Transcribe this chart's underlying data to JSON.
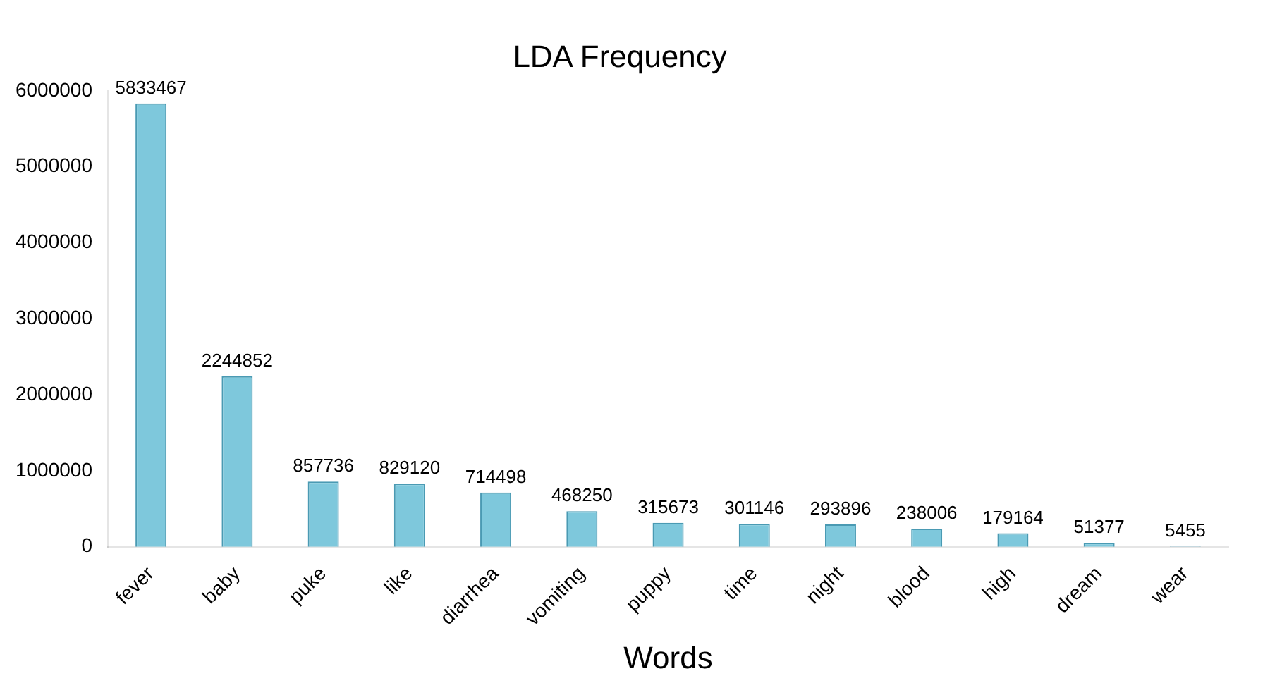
{
  "chart_data": {
    "type": "bar",
    "title": "LDA Frequency",
    "xlabel": "Words",
    "categories": [
      "fever",
      "baby",
      "puke",
      "like",
      "diarrhea",
      "vomiting",
      "puppy",
      "time",
      "night",
      "blood",
      "high",
      "dream",
      "wear"
    ],
    "values": [
      5833467,
      2244852,
      857736,
      829120,
      714498,
      468250,
      315673,
      301146,
      293896,
      238006,
      179164,
      51377,
      5455
    ],
    "color": "#7ec8dc",
    "ylim": [
      0,
      6000000
    ],
    "yticks": [
      0,
      1000000,
      2000000,
      3000000,
      4000000,
      5000000,
      6000000
    ],
    "grid": false,
    "legend": false,
    "data_labels": true
  }
}
